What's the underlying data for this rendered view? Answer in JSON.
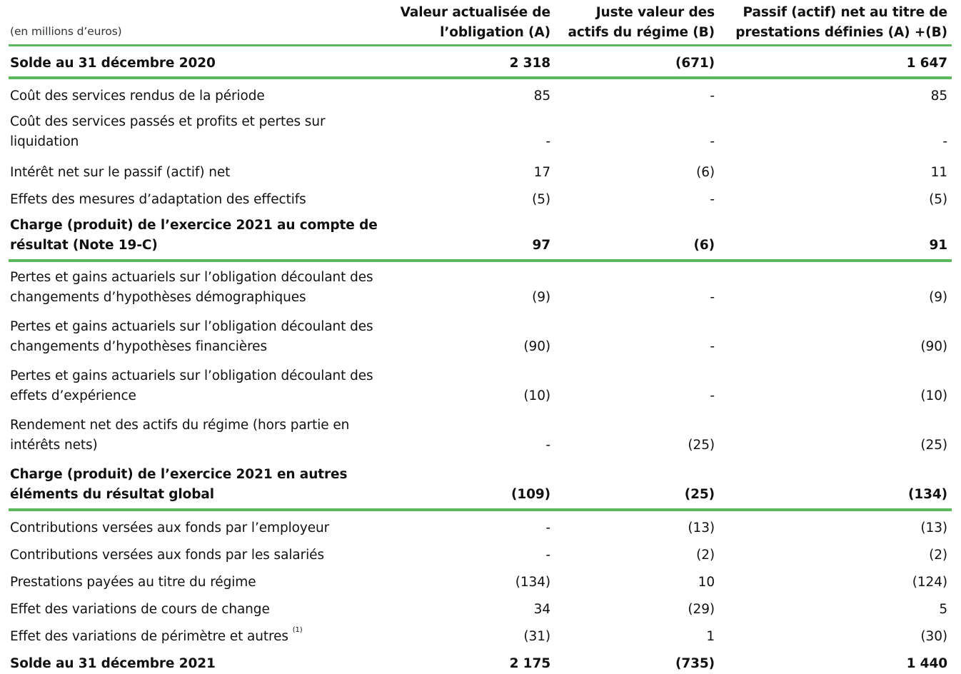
{
  "table": {
    "unit_label": "(en millions d’euros)",
    "headers": [
      [
        "Valeur actualisée de",
        "l’obligation (A)"
      ],
      [
        "Juste valeur des",
        "actifs du régime (B)"
      ],
      [
        "Passif (actif) net au titre de",
        "prestations définies (A) +(B)"
      ]
    ],
    "rows": [
      {
        "label": "Solde au 31 décembre 2020",
        "a": "2 318",
        "b": "(671)",
        "c": "1 647"
      },
      {
        "label": "Coût des services rendus de la période",
        "a": "85",
        "b": "-",
        "c": "85"
      },
      {
        "label": "Coût des services passés et profits et pertes sur liquidation",
        "a": "-",
        "b": "-",
        "c": "-"
      },
      {
        "label": "Intérêt net sur le passif (actif) net",
        "a": "17",
        "b": "(6)",
        "c": "11"
      },
      {
        "label": "Effets des mesures d’adaptation des effectifs",
        "a": "(5)",
        "b": "-",
        "c": "(5)"
      },
      {
        "label": "Charge (produit) de l’exercice 2021 au compte de résultat (Note 19-C)",
        "a": "97",
        "b": "(6)",
        "c": "91"
      },
      {
        "label": "Pertes et gains actuariels sur l’obligation découlant des changements d’hypothèses démographiques",
        "a": "(9)",
        "b": "-",
        "c": "(9)"
      },
      {
        "label": "Pertes et gains actuariels sur l’obligation découlant des changements d’hypothèses financières",
        "a": "(90)",
        "b": "-",
        "c": "(90)"
      },
      {
        "label": "Pertes et gains actuariels sur l’obligation découlant des effets d’expérience",
        "a": "(10)",
        "b": "-",
        "c": "(10)"
      },
      {
        "label": "Rendement net des actifs du régime (hors partie en intérêts nets)",
        "a": "-",
        "b": "(25)",
        "c": "(25)"
      },
      {
        "label": "Charge (produit) de l’exercice 2021 en autres éléments du résultat global",
        "a": "(109)",
        "b": "(25)",
        "c": "(134)"
      },
      {
        "label": "Contributions versées aux fonds par l’employeur",
        "a": "-",
        "b": "(13)",
        "c": "(13)"
      },
      {
        "label": "Contributions versées aux fonds par les salariés",
        "a": "-",
        "b": "(2)",
        "c": "(2)"
      },
      {
        "label": "Prestations payées au titre du régime",
        "a": "(134)",
        "b": "10",
        "c": "(124)"
      },
      {
        "label": "Effet des variations de cours de change",
        "a": "34",
        "b": "(29)",
        "c": "5"
      },
      {
        "label": "Effet des variations de périmètre et autres",
        "footnote": "(1)",
        "a": "(31)",
        "b": "1",
        "c": "(30)"
      },
      {
        "label": "Solde au 31 décembre 2021",
        "a": "2 175",
        "b": "(735)",
        "c": "1 440"
      }
    ]
  },
  "colors": {
    "rule_green": "#5cb85c",
    "text": "#111111"
  }
}
